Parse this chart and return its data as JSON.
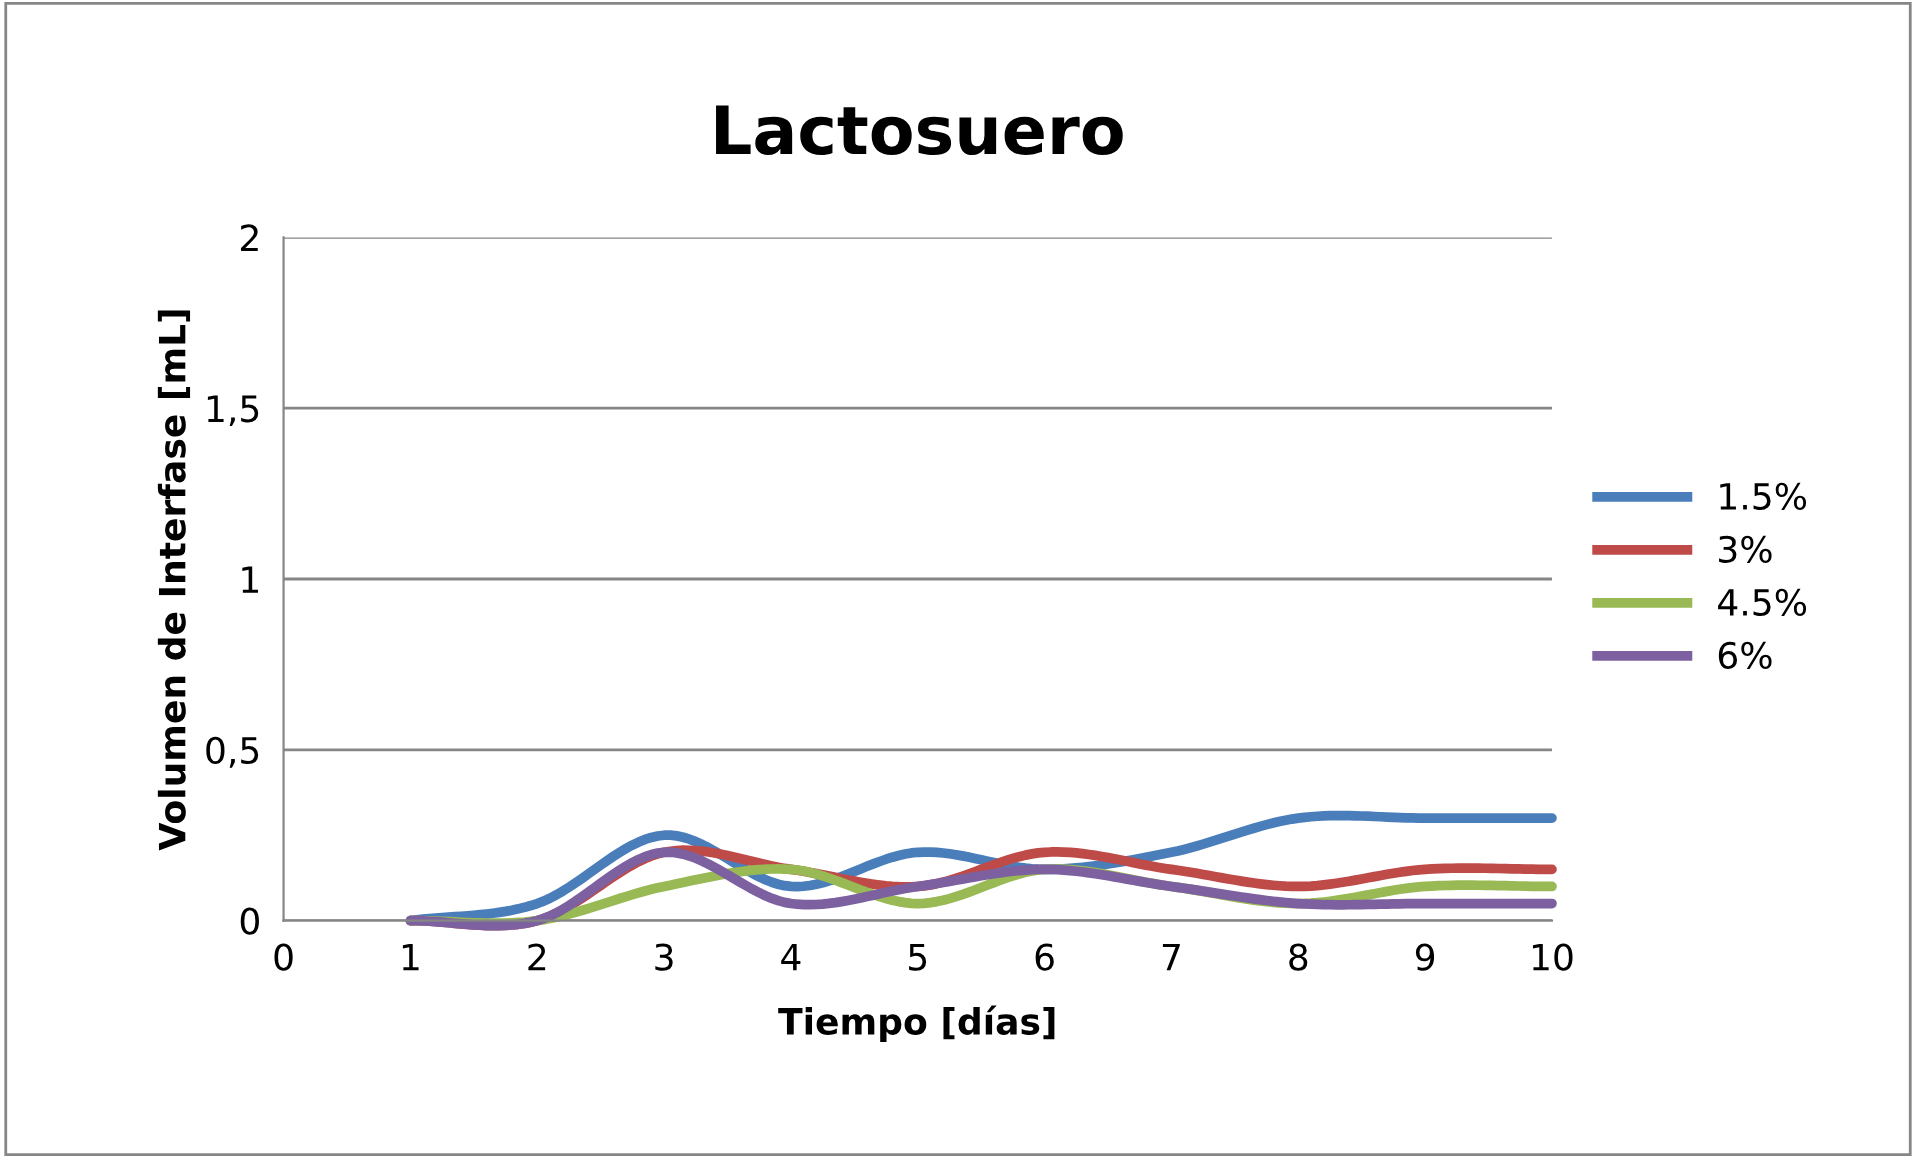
{
  "chart_data": {
    "type": "line",
    "title": "Lactosuero",
    "xlabel": "Tiempo [días]",
    "ylabel": "Volumen de Interfase [mL]",
    "x": [
      1,
      2,
      3,
      4,
      5,
      6,
      7,
      8,
      9,
      10
    ],
    "series": [
      {
        "name": "1.5%",
        "color": "#4a7ebb",
        "values": [
          0,
          0.05,
          0.25,
          0.1,
          0.2,
          0.15,
          0.2,
          0.3,
          0.3,
          0.3
        ]
      },
      {
        "name": "3%",
        "color": "#be4b48",
        "values": [
          0,
          0,
          0.2,
          0.15,
          0.1,
          0.2,
          0.15,
          0.1,
          0.15,
          0.15
        ]
      },
      {
        "name": "4.5%",
        "color": "#98b954",
        "values": [
          0,
          0,
          0.1,
          0.15,
          0.05,
          0.15,
          0.1,
          0.05,
          0.1,
          0.1
        ]
      },
      {
        "name": "6%",
        "color": "#7d60a0",
        "values": [
          0,
          0,
          0.2,
          0.05,
          0.1,
          0.15,
          0.1,
          0.05,
          0.05,
          0.05
        ]
      }
    ],
    "xlim": [
      0,
      10
    ],
    "xticks": [
      0,
      1,
      2,
      3,
      4,
      5,
      6,
      7,
      8,
      9,
      10
    ],
    "ylim": [
      0,
      2
    ],
    "yticks": [
      0,
      {
        "value": 0.5,
        "label": "0,5"
      },
      1,
      {
        "value": 1.5,
        "label": "1,5"
      },
      2
    ],
    "grid": "y",
    "legend": "right",
    "marker": "none",
    "line_style": "solid"
  }
}
